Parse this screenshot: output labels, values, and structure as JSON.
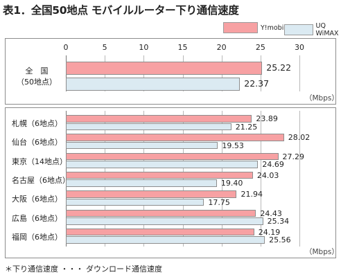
{
  "title": "表1．全国50地点 モバイルルーター下り通信速度",
  "legend": [
    {
      "name": "Y!mobile",
      "color": "#f7a1a3"
    },
    {
      "name": "UQ WiMAX",
      "color": "#dbeaf2"
    }
  ],
  "unit": "（Mbps）",
  "footnote": "＊下り通信速度 ・・・ ダウンロード通信速度",
  "chart_data": {
    "type": "bar",
    "orientation": "horizontal",
    "title": "表1．全国50地点 モバイルルーター下り通信速度",
    "xlim": [
      0,
      30
    ],
    "xticks": [
      "0",
      "5",
      "10",
      "15",
      "20",
      "25",
      "30"
    ],
    "grid": true,
    "legend_position": "top-right",
    "unit": "（Mbps）",
    "series": [
      {
        "name": "Y!mobile",
        "color": "#f7a1a3"
      },
      {
        "name": "UQ WiMAX",
        "color": "#dbeaf2"
      }
    ],
    "national": {
      "label_line1": "全　国",
      "label_line2": "（50地点）",
      "values": [
        25.22,
        22.37
      ]
    },
    "categories": [
      "札幌（6地点）",
      "仙台（6地点）",
      "東京（14地点）",
      "名古屋（6地点）",
      "大阪（6地点）",
      "広島（6地点）",
      "福岡（6地点）"
    ],
    "values": [
      [
        23.89,
        28.02,
        27.29,
        24.03,
        21.94,
        24.43,
        24.19
      ],
      [
        21.25,
        19.53,
        24.69,
        19.4,
        17.75,
        25.34,
        25.56
      ]
    ]
  }
}
